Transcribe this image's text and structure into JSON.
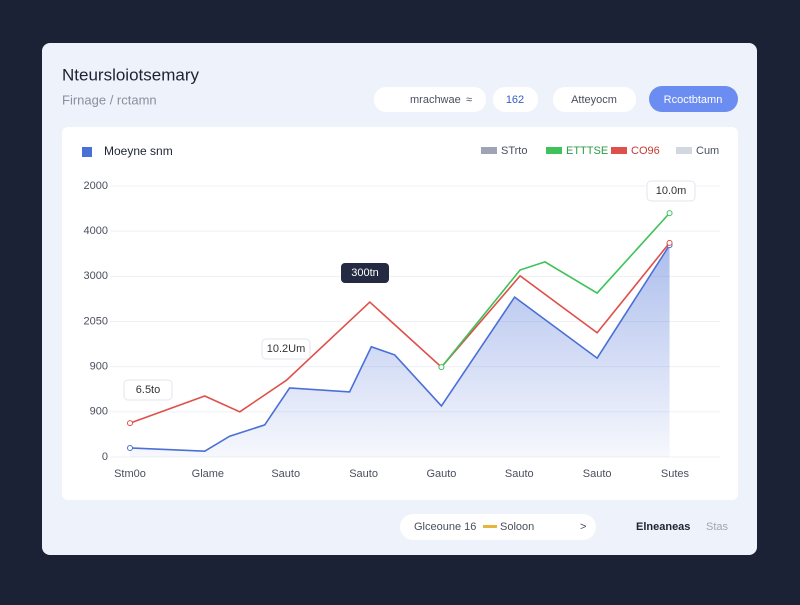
{
  "header": {
    "title": "Nteursloiotsemary",
    "subtitle": "Firnage / rctamn",
    "controls": [
      "mrachwae",
      "162",
      "Atteyocm"
    ],
    "control_icon": "≈",
    "button": "Rcoctbtamn"
  },
  "chart_data": {
    "type": "line",
    "xlim": [
      0,
      7
    ],
    "categories": [
      "Stm0o",
      "Glame",
      "Sauto",
      "Sauto",
      "Gauto",
      "Sauto",
      "Sauto",
      "Sutes"
    ],
    "ylim": [
      0,
      6000
    ],
    "yticks": [
      0,
      {
        "value": 1000,
        "label": "900"
      },
      {
        "value": 2000,
        "label": "900"
      },
      {
        "value": 3000,
        "label": "2050"
      },
      {
        "value": 4000,
        "label": "3000"
      },
      {
        "value": 5000,
        "label": "4000"
      },
      {
        "value": 6000,
        "label": "2000"
      }
    ],
    "grid": true,
    "series": [
      {
        "name": "Moeyne snm",
        "color": "#4a6fd6",
        "area": true,
        "x": [
          0,
          0.96,
          1.28,
          1.73,
          2.05,
          2.82,
          3.1,
          3.4,
          4.0,
          4.94,
          6.0,
          6.93
        ],
        "values": [
          200,
          130,
          460,
          710,
          1530,
          1440,
          2440,
          2260,
          1130,
          3540,
          2190,
          4690
        ]
      },
      {
        "name": "CO96",
        "color": "#e0504a",
        "x": [
          0,
          0.96,
          1.41,
          2.01,
          3.08,
          4.0,
          5.01,
          6.0,
          6.93
        ],
        "values": [
          750,
          1350,
          1000,
          1700,
          3430,
          1990,
          4010,
          2750,
          4740
        ]
      },
      {
        "name": "ETTTSE",
        "color": "#3fc25a",
        "x": [
          4.0,
          5.01,
          5.33,
          6.0,
          6.93
        ],
        "values": [
          1990,
          4140,
          4320,
          3630,
          5400
        ]
      }
    ],
    "legend_extra": [
      {
        "name": "STrto",
        "color": "#9ea3b5"
      },
      {
        "name": "Cum",
        "color": "#d3d7e0"
      }
    ],
    "annotations": [
      "6.5to",
      "10.2Um",
      "300tn",
      "10.0m"
    ]
  },
  "footer": {
    "pill": "Glceoune 16",
    "pill_value": "Soloon",
    "pill_arrow": ">",
    "right": "Elneaneas",
    "right_sub": "Stas"
  }
}
